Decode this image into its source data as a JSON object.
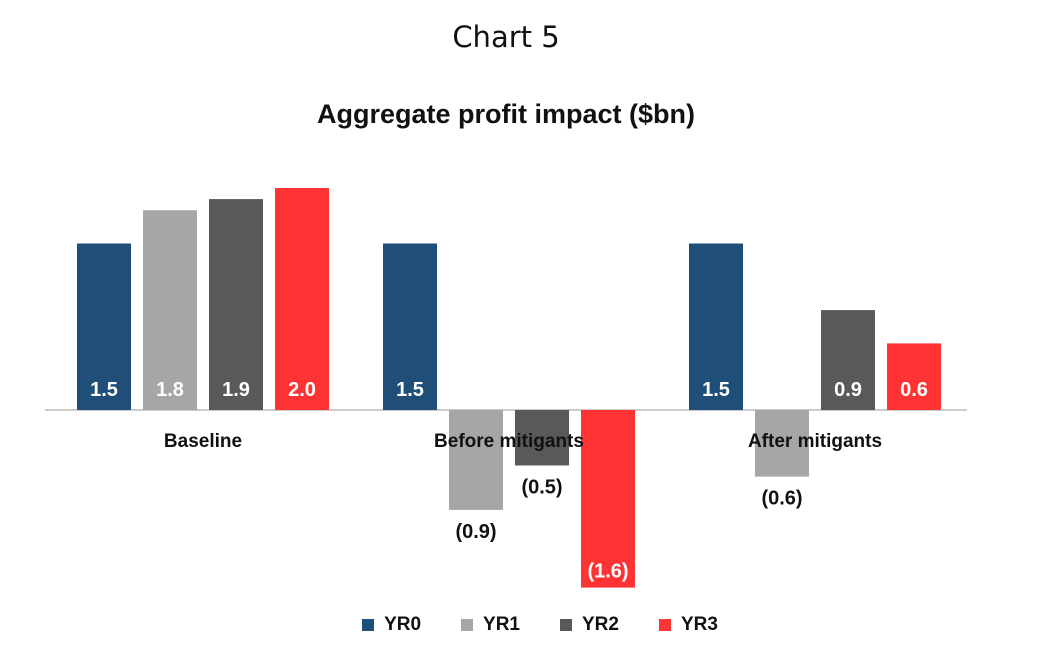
{
  "page": {
    "title": "Chart 5"
  },
  "chart_data": {
    "type": "bar",
    "title": "Aggregate profit impact ($bn)",
    "categories": [
      "Baseline",
      "Before mitigants",
      "After mitigants"
    ],
    "series": [
      {
        "name": "YR0",
        "color": "#1F4E79",
        "values": [
          1.5,
          1.5,
          1.5
        ],
        "labels": [
          "1.5",
          "1.5",
          "1.5"
        ]
      },
      {
        "name": "YR1",
        "color": "#A6A6A6",
        "values": [
          1.8,
          -0.9,
          -0.6
        ],
        "labels": [
          "1.8",
          "(0.9)",
          "(0.6)"
        ]
      },
      {
        "name": "YR2",
        "color": "#595959",
        "values": [
          1.9,
          -0.5,
          0.9
        ],
        "labels": [
          "1.9",
          "(0.5)",
          "0.9"
        ]
      },
      {
        "name": "YR3",
        "color": "#FF3333",
        "values": [
          2.0,
          -1.6,
          0.6
        ],
        "labels": [
          "2.0",
          "(1.6)",
          "0.6"
        ]
      }
    ],
    "grid": false,
    "legend": "bottom"
  }
}
